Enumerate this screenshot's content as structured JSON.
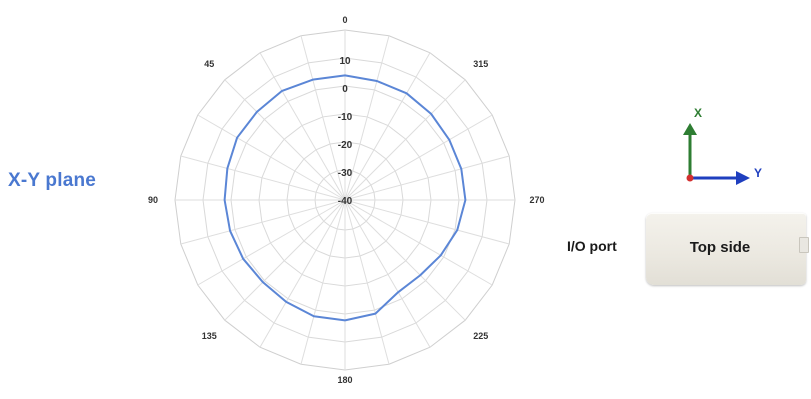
{
  "plane_label": "X-Y plane",
  "chart_data": {
    "type": "radar",
    "title": "",
    "angle_labels": [
      "0",
      "45",
      "90",
      "135",
      "180",
      "225",
      "270",
      "315"
    ],
    "angle_direction": "counterclockwise",
    "radial_ticks": [
      "10",
      "0",
      "-10",
      "-20",
      "-30",
      "-40"
    ],
    "rlim": [
      -40,
      10
    ],
    "spokes": 24,
    "grid": true,
    "series": [
      {
        "color": "#5b86d6",
        "angles": [
          0,
          15,
          30,
          45,
          60,
          75,
          90,
          105,
          120,
          135,
          150,
          165,
          180,
          195,
          210,
          225,
          240,
          255,
          270,
          285,
          300,
          315,
          330,
          345
        ],
        "values": [
          4.5,
          4.5,
          5,
          4.5,
          4.5,
          3.5,
          3,
          2.5,
          2,
          1.5,
          2,
          3,
          3,
          2,
          -2,
          -2,
          -0.5,
          1.5,
          3,
          3,
          3,
          3.5,
          4,
          4
        ]
      }
    ]
  },
  "axes": {
    "x_label": "X",
    "y_label": "Y",
    "x_color": "#2e7d32",
    "y_color": "#1f3fbf",
    "origin_color": "#d32f2f"
  },
  "port_label": "I/O port",
  "device_label": "Top side"
}
